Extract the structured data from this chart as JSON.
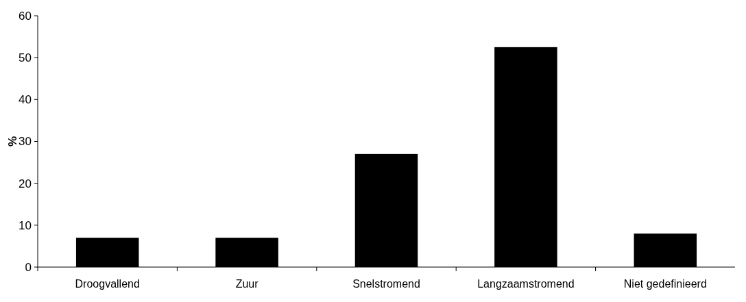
{
  "chart_data": {
    "type": "bar",
    "ylabel": "%",
    "categories": [
      "Droogvallend",
      "Zuur",
      "Snelstromend",
      "Langzaamstromend",
      "Niet gedefinieerd"
    ],
    "values": [
      7,
      7,
      27,
      52.5,
      8
    ],
    "color": "#000000",
    "ylim": [
      0,
      60
    ],
    "yticks": [
      0,
      10,
      20,
      30,
      40,
      50,
      60
    ],
    "grid": false
  }
}
